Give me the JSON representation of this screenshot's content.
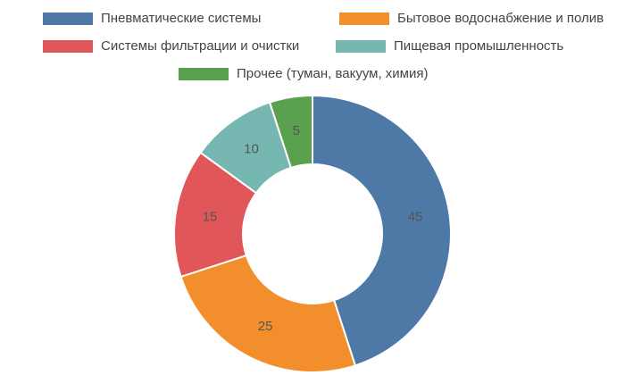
{
  "chart_data": {
    "type": "donut",
    "categories": [
      "Пневматические системы",
      "Бытовое водоснабжение и полив",
      "Системы фильтрации и очистки",
      "Пищевая промышленность",
      "Прочее (туман, вакуум, химия)"
    ],
    "values": [
      45,
      25,
      15,
      10,
      5
    ],
    "colors": [
      "#4e79a7",
      "#f28e2b",
      "#e15759",
      "#76b7b2",
      "#59a14f"
    ],
    "legend": "top"
  }
}
